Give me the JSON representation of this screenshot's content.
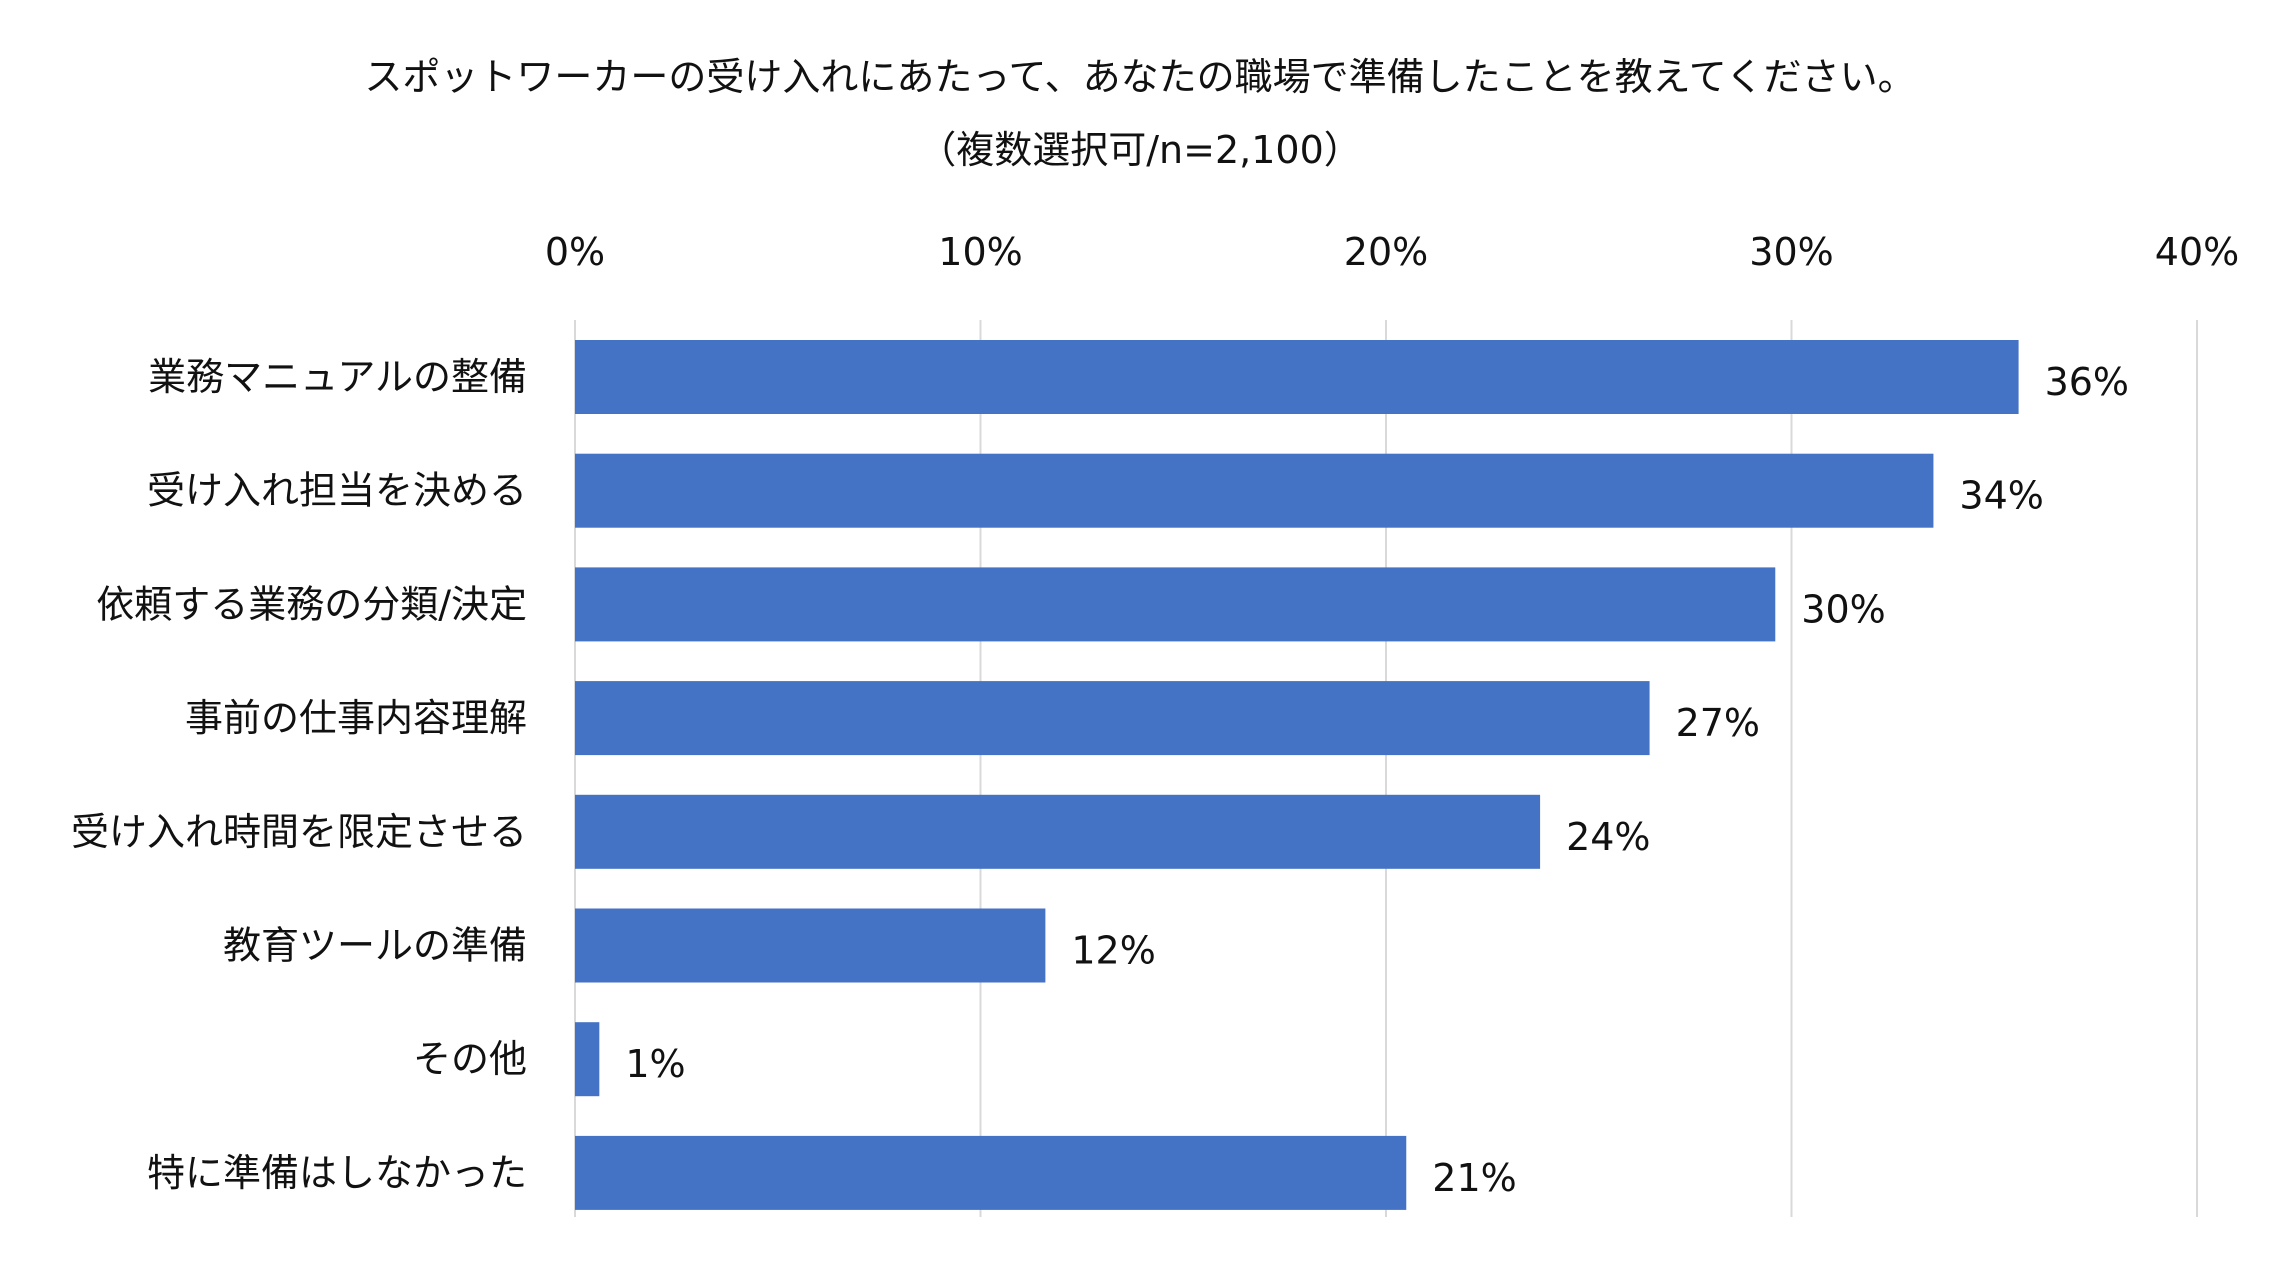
{
  "chart_data": {
    "type": "bar",
    "orientation": "horizontal",
    "title": "スポットワーカーの受け入れにあたって、あなたの職場で準備したことを教えてください。",
    "subtitle": "（複数選択可/n=2,100）",
    "categories": [
      "業務マニュアルの整備",
      "受け入れ担当を決める",
      "依頼する業務の分類/決定",
      "事前の仕事内容理解",
      "受け入れ時間を限定させる",
      "教育ツールの準備",
      "その他",
      "特に準備はしなかった"
    ],
    "values": [
      35.6,
      33.5,
      29.6,
      26.5,
      23.8,
      11.6,
      0.6,
      20.5
    ],
    "value_labels": [
      "36%",
      "34%",
      "30%",
      "27%",
      "24%",
      "12%",
      "1%",
      "21%"
    ],
    "xlim": [
      0,
      40
    ],
    "ticks": [
      0,
      10,
      20,
      30,
      40
    ],
    "tick_labels": [
      "0%",
      "10%",
      "20%",
      "30%",
      "40%"
    ],
    "axis_position": "top",
    "grid": true,
    "legend": "none",
    "bar_color": "#4472c4"
  }
}
